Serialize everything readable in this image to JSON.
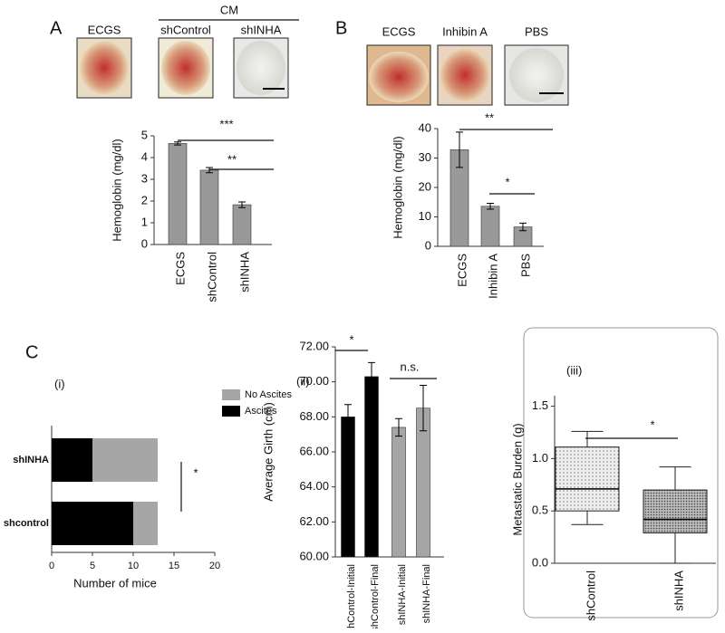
{
  "figure": {
    "panel_a": "A",
    "panel_b": "B",
    "panel_c": "C",
    "sub_i": "(i)",
    "sub_ii": "(ii)",
    "sub_iii": "(iii)",
    "cm": "CM"
  },
  "chart_data": [
    {
      "type": "bar",
      "categories": [
        "ECGS",
        "shControl",
        "shINHA"
      ],
      "values": [
        4.65,
        3.42,
        1.83
      ],
      "errors": [
        0.07,
        0.12,
        0.13
      ],
      "color": "#999999",
      "ylim": [
        0,
        5
      ],
      "yticks": [
        0,
        1,
        2,
        3,
        4,
        5
      ],
      "y_label": "Hemoglobin (mg/dl)",
      "image_labels": [
        "ECGS",
        "shControl",
        "shINHA"
      ],
      "annotations": [
        "***",
        "**"
      ]
    },
    {
      "type": "bar",
      "categories": [
        "ECGS",
        "Inhibin A",
        "PBS"
      ],
      "values": [
        32.8,
        13.6,
        6.6
      ],
      "errors": [
        6.0,
        1.0,
        1.3
      ],
      "color": "#999999",
      "ylim": [
        0,
        40
      ],
      "yticks": [
        0,
        10,
        20,
        30,
        40
      ],
      "y_label": "Hemoglobin (mg/dl)",
      "image_labels": [
        "ECGS",
        "Inhibin A",
        "PBS"
      ],
      "annotations": [
        "**",
        "*"
      ]
    },
    {
      "type": "hbar-stacked",
      "categories": [
        "shINHA",
        "shcontrol"
      ],
      "series": [
        {
          "name": "Ascites",
          "color": "#000000",
          "values": [
            5,
            10
          ]
        },
        {
          "name": "No Ascites",
          "color": "#a6a6a6",
          "values": [
            8,
            3
          ]
        }
      ],
      "xlim": [
        0,
        20
      ],
      "xticks": [
        0,
        5,
        10,
        15,
        20
      ],
      "x_label": "Number of mice",
      "annotations": [
        "*"
      ]
    },
    {
      "type": "bar",
      "categories": [
        "shControl-Initial",
        "shControl-Final",
        "shINHA-Initial",
        "shINHA-Final"
      ],
      "values": [
        68.0,
        70.3,
        67.4,
        68.5
      ],
      "errors": [
        0.7,
        0.8,
        0.5,
        1.3
      ],
      "colors": [
        "#000000",
        "#000000",
        "#a6a6a6",
        "#a6a6a6"
      ],
      "ylim": [
        60,
        72
      ],
      "yticks": [
        {
          "value": 60,
          "label": "60.00"
        },
        {
          "value": 62,
          "label": "62.00"
        },
        {
          "value": 64,
          "label": "64.00"
        },
        {
          "value": 66,
          "label": "66.00"
        },
        {
          "value": 68,
          "label": "68.00"
        },
        {
          "value": 70,
          "label": "70.00"
        },
        {
          "value": 72,
          "label": "72.00"
        }
      ],
      "y_label": "Average Girth (cm)",
      "annotations": [
        "*",
        "n.s."
      ]
    },
    {
      "type": "box",
      "boxes": [
        {
          "name": "shControl",
          "min": 0.37,
          "q1": 0.5,
          "median": 0.71,
          "q3": 1.11,
          "max": 1.26
        },
        {
          "name": "shINHA",
          "min": 0.0,
          "q1": 0.29,
          "median": 0.42,
          "q3": 0.7,
          "max": 0.92
        }
      ],
      "ylim": [
        0,
        1.6
      ],
      "yticks": [
        {
          "value": 0,
          "label": "0.0"
        },
        {
          "value": 0.5,
          "label": "0.5"
        },
        {
          "value": 1,
          "label": "1.0"
        },
        {
          "value": 1.5,
          "label": "1.5"
        }
      ],
      "y_label": "Metastatic Burden (g)",
      "annotations": [
        "*"
      ]
    }
  ]
}
